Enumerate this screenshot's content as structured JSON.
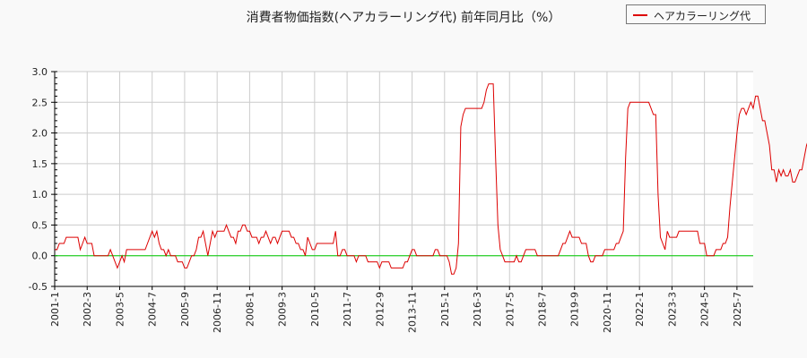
{
  "title": "消費者物価指数(ヘアカラーリング代) 前年同月比（%）",
  "legend": {
    "label": "ヘアカラーリング代",
    "color": "#dd0000"
  },
  "colors": {
    "line": "#dd0000",
    "zero_line": "#00cc00",
    "grid": "#cccccc",
    "background": "#f9f9f9",
    "plot_bg": "#ffffff"
  },
  "chart_data": {
    "type": "line",
    "title": "消費者物価指数(ヘアカラーリング代) 前年同月比（%）",
    "xlabel": "",
    "ylabel": "",
    "ylim": [
      -0.5,
      3.0
    ],
    "yticks": [
      "3.0",
      "2.5",
      "2.0",
      "1.5",
      "1.0",
      "0.5",
      "0.0",
      "-0.5"
    ],
    "xticks": [
      "2001-1",
      "2002-3",
      "2003-5",
      "2004-7",
      "2005-9",
      "2006-11",
      "2008-1",
      "2009-3",
      "2010-5",
      "2011-7",
      "2012-9",
      "2013-11",
      "2015-1",
      "2016-3",
      "2017-5",
      "2018-7",
      "2019-9",
      "2020-11",
      "2022-1",
      "2023-3",
      "2024-5",
      "2025-7"
    ],
    "grid": true,
    "legend_position": "top-right",
    "x_start": "2001-1",
    "x_step": "1 month",
    "series": [
      {
        "name": "ヘアカラーリング代",
        "values": [
          0.1,
          0.1,
          0.2,
          0.2,
          0.2,
          0.3,
          0.3,
          0.3,
          0.3,
          0.3,
          0.3,
          0.1,
          0.2,
          0.3,
          0.2,
          0.2,
          0.2,
          0.0,
          0.0,
          0.0,
          0.0,
          0.0,
          0.0,
          0.0,
          0.1,
          0.0,
          -0.1,
          -0.2,
          -0.1,
          0.0,
          -0.1,
          0.1,
          0.1,
          0.1,
          0.1,
          0.1,
          0.1,
          0.1,
          0.1,
          0.1,
          0.2,
          0.3,
          0.4,
          0.3,
          0.4,
          0.2,
          0.1,
          0.1,
          0.0,
          0.1,
          0.0,
          0.0,
          0.0,
          -0.1,
          -0.1,
          -0.1,
          -0.2,
          -0.2,
          -0.1,
          0.0,
          0.0,
          0.1,
          0.3,
          0.3,
          0.4,
          0.2,
          0.0,
          0.2,
          0.4,
          0.3,
          0.4,
          0.4,
          0.4,
          0.4,
          0.5,
          0.4,
          0.3,
          0.3,
          0.2,
          0.4,
          0.4,
          0.5,
          0.5,
          0.4,
          0.4,
          0.3,
          0.3,
          0.3,
          0.2,
          0.3,
          0.3,
          0.4,
          0.3,
          0.2,
          0.3,
          0.3,
          0.2,
          0.3,
          0.4,
          0.4,
          0.4,
          0.4,
          0.3,
          0.3,
          0.2,
          0.2,
          0.1,
          0.1,
          0.0,
          0.3,
          0.2,
          0.1,
          0.1,
          0.2,
          0.2,
          0.2,
          0.2,
          0.2,
          0.2,
          0.2,
          0.2,
          0.4,
          0.0,
          0.0,
          0.1,
          0.1,
          0.0,
          0.0,
          0.0,
          0.0,
          -0.1,
          0.0,
          0.0,
          0.0,
          0.0,
          -0.1,
          -0.1,
          -0.1,
          -0.1,
          -0.1,
          -0.2,
          -0.1,
          -0.1,
          -0.1,
          -0.1,
          -0.2,
          -0.2,
          -0.2,
          -0.2,
          -0.2,
          -0.2,
          -0.1,
          -0.1,
          0.0,
          0.1,
          0.1,
          0.0,
          0.0,
          0.0,
          0.0,
          0.0,
          0.0,
          0.0,
          0.0,
          0.1,
          0.1,
          0.0,
          0.0,
          0.0,
          0.0,
          -0.1,
          -0.3,
          -0.3,
          -0.2,
          0.2,
          2.1,
          2.3,
          2.4,
          2.4,
          2.4,
          2.4,
          2.4,
          2.4,
          2.4,
          2.4,
          2.5,
          2.7,
          2.8,
          2.8,
          2.8,
          1.6,
          0.5,
          0.1,
          0.0,
          -0.1,
          -0.1,
          -0.1,
          -0.1,
          -0.1,
          0.0,
          -0.1,
          -0.1,
          0.0,
          0.1,
          0.1,
          0.1,
          0.1,
          0.1,
          0.0,
          0.0,
          0.0,
          0.0,
          0.0,
          0.0,
          0.0,
          0.0,
          0.0,
          0.0,
          0.1,
          0.2,
          0.2,
          0.3,
          0.4,
          0.3,
          0.3,
          0.3,
          0.3,
          0.2,
          0.2,
          0.2,
          0.0,
          -0.1,
          -0.1,
          0.0,
          0.0,
          0.0,
          0.0,
          0.1,
          0.1,
          0.1,
          0.1,
          0.1,
          0.2,
          0.2,
          0.3,
          0.4,
          1.6,
          2.4,
          2.5,
          2.5,
          2.5,
          2.5,
          2.5,
          2.5,
          2.5,
          2.5,
          2.5,
          2.4,
          2.3,
          2.3,
          1.0,
          0.3,
          0.2,
          0.1,
          0.4,
          0.3,
          0.3,
          0.3,
          0.3,
          0.4,
          0.4,
          0.4,
          0.4,
          0.4,
          0.4,
          0.4,
          0.4,
          0.4,
          0.2,
          0.2,
          0.2,
          0.0,
          0.0,
          0.0,
          0.0,
          0.1,
          0.1,
          0.1,
          0.2,
          0.2,
          0.3,
          0.8,
          1.2,
          1.6,
          2.0,
          2.3,
          2.4,
          2.4,
          2.3,
          2.4,
          2.5,
          2.4,
          2.6,
          2.6,
          2.4,
          2.2,
          2.2,
          2.0,
          1.8,
          1.4,
          1.4,
          1.2,
          1.4,
          1.3,
          1.4,
          1.3,
          1.3,
          1.4,
          1.2,
          1.2,
          1.3,
          1.4,
          1.4,
          1.6,
          1.8,
          1.9,
          2.0,
          1.7,
          1.8,
          1.7,
          1.6
        ]
      }
    ]
  }
}
